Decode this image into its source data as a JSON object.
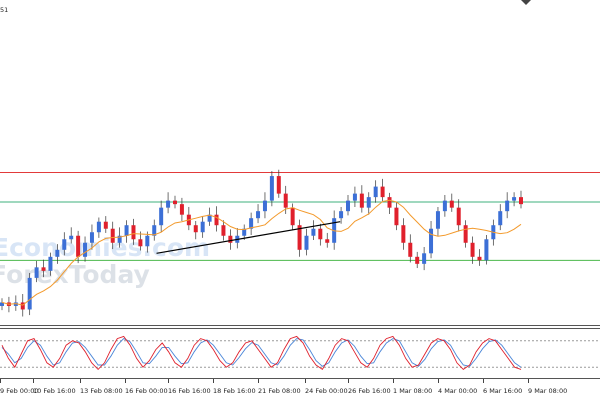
{
  "chart_data": {
    "type": "candlestick",
    "symbol_fragment": "51",
    "watermark": [
      "Economies.com",
      "ForexToday"
    ],
    "colors": {
      "up_body": "#3c6fd6",
      "down_body": "#e0202c",
      "wick": "#333333",
      "moving_average": "#f39a2c",
      "resistance": "#e23a3a",
      "support_upper": "#3fb27d",
      "support_lower": "#4bb84b",
      "trendline": "#000000",
      "stoch_main": "#e0202c",
      "stoch_signal": "#4a86d8",
      "stoch_level": "#9a9a9a",
      "border": "#555555"
    },
    "x_axis": {
      "labels": [
        "9 Feb 00:00",
        "10 Feb 16:00",
        "13 Feb 08:00",
        "16 Feb 00:00",
        "16 Feb 16:00",
        "18 Feb 16:00",
        "21 Feb 08:00",
        "24 Feb 00:00",
        "26 Feb 16:00",
        "1 Mar 08:00",
        "4 Mar 00:00",
        "6 Mar 16:00",
        "9 Mar 08:00"
      ]
    },
    "price_closes": [
      -0.55,
      -0.6,
      -0.55,
      -0.65,
      -0.2,
      -0.05,
      -0.1,
      0.1,
      0.2,
      0.35,
      0.4,
      0.1,
      0.3,
      0.45,
      0.6,
      0.5,
      0.3,
      0.4,
      0.55,
      0.35,
      0.25,
      0.4,
      0.55,
      0.8,
      0.9,
      0.85,
      0.7,
      0.55,
      0.45,
      0.6,
      0.7,
      0.55,
      0.4,
      0.3,
      0.4,
      0.5,
      0.65,
      0.75,
      0.9,
      1.25,
      1.0,
      0.8,
      0.55,
      0.2,
      0.4,
      0.5,
      0.35,
      0.3,
      0.65,
      0.75,
      0.9,
      1.0,
      0.8,
      0.95,
      1.1,
      0.95,
      0.8,
      0.55,
      0.3,
      0.1,
      0.0,
      0.15,
      0.5,
      0.75,
      0.9,
      0.8,
      0.55,
      0.3,
      0.1,
      0.05,
      0.35,
      0.55,
      0.75,
      0.9,
      0.95,
      0.85
    ],
    "levels": {
      "resistance": 1.3,
      "support_upper": 0.88,
      "support_lower": 0.05
    },
    "trendline": {
      "from": {
        "x_index": 0.265,
        "value": 0.15
      },
      "to": {
        "x_index": 0.58,
        "value": 0.6
      }
    },
    "stochastic": {
      "levels": [
        80,
        20
      ],
      "main": [
        70,
        40,
        20,
        50,
        80,
        85,
        60,
        30,
        20,
        40,
        70,
        80,
        75,
        55,
        30,
        15,
        30,
        60,
        85,
        90,
        70,
        40,
        20,
        35,
        60,
        75,
        55,
        30,
        20,
        40,
        70,
        85,
        80,
        60,
        35,
        20,
        30,
        55,
        75,
        80,
        60,
        40,
        20,
        30,
        60,
        85,
        90,
        75,
        45,
        25,
        15,
        40,
        70,
        85,
        80,
        55,
        30,
        20,
        40,
        70,
        85,
        90,
        70,
        40,
        20,
        25,
        50,
        75,
        85,
        80,
        60,
        30,
        15,
        25,
        55,
        75,
        85,
        80,
        60,
        40,
        20,
        15
      ],
      "signal": [
        65,
        50,
        30,
        40,
        65,
        80,
        70,
        45,
        25,
        30,
        55,
        75,
        78,
        65,
        45,
        25,
        25,
        45,
        70,
        85,
        78,
        55,
        30,
        28,
        45,
        65,
        65,
        45,
        28,
        30,
        55,
        75,
        82,
        70,
        50,
        30,
        25,
        42,
        62,
        76,
        70,
        50,
        30,
        25,
        45,
        70,
        85,
        82,
        60,
        35,
        22,
        30,
        55,
        75,
        82,
        68,
        45,
        28,
        30,
        55,
        75,
        85,
        80,
        55,
        30,
        22,
        38,
        62,
        78,
        82,
        70,
        45,
        25,
        22,
        40,
        62,
        78,
        82,
        70,
        50,
        30,
        20
      ]
    }
  }
}
